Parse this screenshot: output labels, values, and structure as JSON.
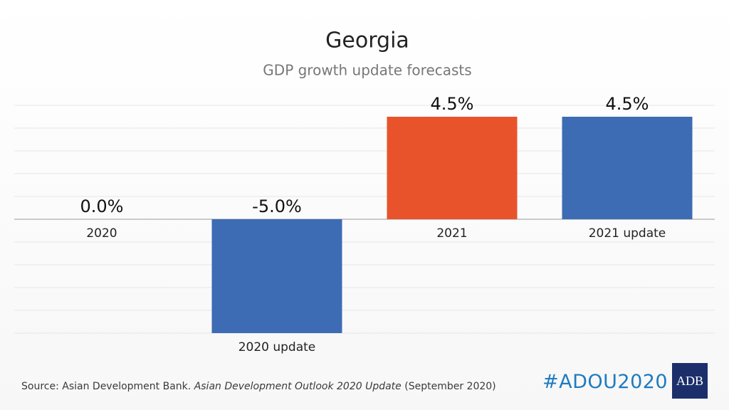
{
  "chart_data": {
    "type": "bar",
    "title": "Georgia",
    "subtitle": "GDP growth update forecasts",
    "categories": [
      "2020",
      "2020 update",
      "2021",
      "2021 update"
    ],
    "values": [
      0.0,
      -5.0,
      4.5,
      4.5
    ],
    "value_labels": [
      "0.0%",
      "-5.0%",
      "4.5%",
      "4.5%"
    ],
    "colors": [
      "#3d6cb4",
      "#3d6cb4",
      "#e8532b",
      "#3d6cb4"
    ],
    "ylim": [
      -5,
      5
    ],
    "yticks": [
      -5,
      -4,
      -3,
      -2,
      -1,
      0,
      1,
      2,
      3,
      4,
      5
    ],
    "grid": true
  },
  "footer": {
    "source_prefix": "Source: Asian Development Bank.",
    "source_title": "Asian Development Outlook 2020 Update",
    "source_suffix": "(September 2020)",
    "hashtag": "#ADOU2020",
    "logo": "ADB"
  }
}
